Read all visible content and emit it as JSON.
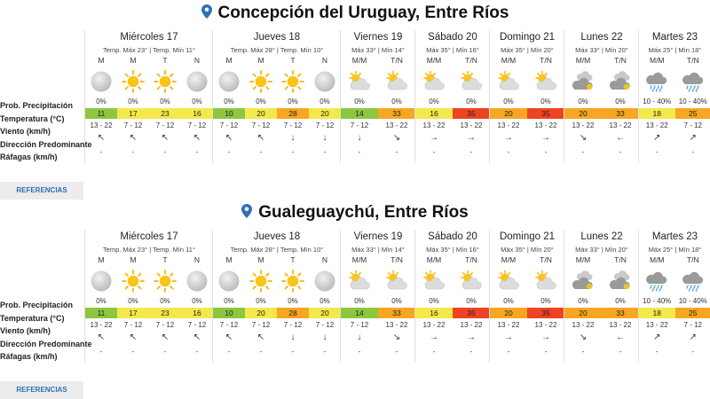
{
  "colors": {
    "accent": "#2f6fb3",
    "green": "#8dc63f",
    "yellow": "#f5e84a",
    "orange": "#f7a623",
    "red": "#ee4423",
    "text": "#222222"
  },
  "labels": {
    "prob": "Prob. Precipitación",
    "temp": "Temperatura (°C)",
    "wind": "Viento (km/h)",
    "dir": "Dirección Predominante",
    "gust": "Ráfagas (km/h)"
  },
  "references_label": "REFERENCIAS",
  "blocks": [
    {
      "title": "Concepción del Uruguay, Entre Ríos",
      "days": [
        {
          "name": "Miércoles 17",
          "temps": "Temp. Máx 23° | Temp. Mín 11°",
          "cols": [
            {
              "p": "M",
              "icon": "full-moon",
              "pp": "0%",
              "t": "11",
              "tc": "green",
              "w": "13 - 22",
              "d": "↖",
              "g": "-"
            },
            {
              "p": "M",
              "icon": "sun",
              "pp": "0%",
              "t": "17",
              "tc": "yellow",
              "w": "7 - 12",
              "d": "↖",
              "g": "-"
            },
            {
              "p": "T",
              "icon": "sun",
              "pp": "0%",
              "t": "23",
              "tc": "yellow",
              "w": "7 - 12",
              "d": "↖",
              "g": "-"
            },
            {
              "p": "N",
              "icon": "full-moon",
              "pp": "0%",
              "t": "16",
              "tc": "yellow",
              "w": "7 - 12",
              "d": "↖",
              "g": "-"
            }
          ]
        },
        {
          "name": "Jueves 18",
          "temps": "Temp. Máx 28° | Temp. Mín 10°",
          "cols": [
            {
              "p": "M",
              "icon": "full-moon",
              "pp": "0%",
              "t": "10",
              "tc": "green",
              "w": "7 - 12",
              "d": "↖",
              "g": "-"
            },
            {
              "p": "M",
              "icon": "sun",
              "pp": "0%",
              "t": "20",
              "tc": "yellow",
              "w": "7 - 12",
              "d": "↖",
              "g": "-"
            },
            {
              "p": "T",
              "icon": "sun",
              "pp": "0%",
              "t": "28",
              "tc": "orange",
              "w": "7 - 12",
              "d": "↓",
              "g": "-"
            },
            {
              "p": "N",
              "icon": "full-moon",
              "pp": "0%",
              "t": "20",
              "tc": "yellow",
              "w": "7 - 12",
              "d": "↓",
              "g": "-"
            }
          ]
        },
        {
          "name": "Viernes 19",
          "temps": "Máx 33° | Mín 14°",
          "cols": [
            {
              "p": "M/M",
              "icon": "partly-cloudy",
              "pp": "0%",
              "t": "14",
              "tc": "green",
              "w": "7 - 12",
              "d": "↓",
              "g": "-"
            },
            {
              "p": "T/N",
              "icon": "partly-cloudy",
              "pp": "0%",
              "t": "33",
              "tc": "orange",
              "w": "13 - 22",
              "d": "↘",
              "g": "-"
            }
          ]
        },
        {
          "name": "Sábado 20",
          "temps": "Máx 35° | Mín 16°",
          "cols": [
            {
              "p": "M/M",
              "icon": "partly-cloudy",
              "pp": "0%",
              "t": "16",
              "tc": "yellow",
              "w": "13 - 22",
              "d": "→",
              "g": "-"
            },
            {
              "p": "T/N",
              "icon": "partly-cloudy",
              "pp": "0%",
              "t": "35",
              "tc": "red",
              "w": "13 - 22",
              "d": "→",
              "g": "-"
            }
          ]
        },
        {
          "name": "Domingo 21",
          "temps": "Máx 35° | Mín 20°",
          "cols": [
            {
              "p": "M/M",
              "icon": "partly-cloudy",
              "pp": "0%",
              "t": "20",
              "tc": "orange",
              "w": "13 - 22",
              "d": "→",
              "g": "-"
            },
            {
              "p": "T/N",
              "icon": "partly-cloudy",
              "pp": "0%",
              "t": "35",
              "tc": "red",
              "w": "13 - 22",
              "d": "→",
              "g": "-"
            }
          ]
        },
        {
          "name": "Lunes 22",
          "temps": "Máx 33° | Mín 20°",
          "cols": [
            {
              "p": "M/M",
              "icon": "cloudy",
              "pp": "0%",
              "t": "20",
              "tc": "orange",
              "w": "13 - 22",
              "d": "↘",
              "g": "-"
            },
            {
              "p": "T/N",
              "icon": "cloudy",
              "pp": "0%",
              "t": "33",
              "tc": "orange",
              "w": "13 - 22",
              "d": "←",
              "g": "-"
            }
          ]
        },
        {
          "name": "Martes 23",
          "temps": "Máx 25° | Mín 18°",
          "cols": [
            {
              "p": "M/M",
              "icon": "rain",
              "pp": "10 - 40%",
              "t": "18",
              "tc": "yellow",
              "w": "13 - 22",
              "d": "↗",
              "g": "-"
            },
            {
              "p": "T/N",
              "icon": "rain",
              "pp": "10 - 40%",
              "t": "25",
              "tc": "orange",
              "w": "7 - 12",
              "d": "↗",
              "g": "-"
            }
          ]
        }
      ]
    },
    {
      "title": "Gualeguaychú, Entre Ríos",
      "days": [
        {
          "name": "Miércoles 17",
          "temps": "Temp. Máx 23° | Temp. Mín 11°",
          "cols": [
            {
              "p": "M",
              "icon": "full-moon",
              "pp": "0%",
              "t": "11",
              "tc": "green",
              "w": "13 - 22",
              "d": "↖",
              "g": "-"
            },
            {
              "p": "M",
              "icon": "sun",
              "pp": "0%",
              "t": "17",
              "tc": "yellow",
              "w": "7 - 12",
              "d": "↖",
              "g": "-"
            },
            {
              "p": "T",
              "icon": "sun",
              "pp": "0%",
              "t": "23",
              "tc": "yellow",
              "w": "7 - 12",
              "d": "↖",
              "g": "-"
            },
            {
              "p": "N",
              "icon": "full-moon",
              "pp": "0%",
              "t": "16",
              "tc": "yellow",
              "w": "7 - 12",
              "d": "↖",
              "g": "-"
            }
          ]
        },
        {
          "name": "Jueves 18",
          "temps": "Temp. Máx 28° | Temp. Mín 10°",
          "cols": [
            {
              "p": "M",
              "icon": "full-moon",
              "pp": "0%",
              "t": "10",
              "tc": "green",
              "w": "7 - 12",
              "d": "↖",
              "g": "-"
            },
            {
              "p": "M",
              "icon": "sun",
              "pp": "0%",
              "t": "20",
              "tc": "yellow",
              "w": "7 - 12",
              "d": "↖",
              "g": "-"
            },
            {
              "p": "T",
              "icon": "sun",
              "pp": "0%",
              "t": "28",
              "tc": "orange",
              "w": "7 - 12",
              "d": "↓",
              "g": "-"
            },
            {
              "p": "N",
              "icon": "full-moon",
              "pp": "0%",
              "t": "20",
              "tc": "yellow",
              "w": "7 - 12",
              "d": "↓",
              "g": "-"
            }
          ]
        },
        {
          "name": "Viernes 19",
          "temps": "Máx 33° | Mín 14°",
          "cols": [
            {
              "p": "M/M",
              "icon": "partly-cloudy",
              "pp": "0%",
              "t": "14",
              "tc": "green",
              "w": "7 - 12",
              "d": "↓",
              "g": "-"
            },
            {
              "p": "T/N",
              "icon": "partly-cloudy",
              "pp": "0%",
              "t": "33",
              "tc": "orange",
              "w": "13 - 22",
              "d": "↘",
              "g": "-"
            }
          ]
        },
        {
          "name": "Sábado 20",
          "temps": "Máx 35° | Mín 16°",
          "cols": [
            {
              "p": "M/M",
              "icon": "partly-cloudy",
              "pp": "0%",
              "t": "16",
              "tc": "yellow",
              "w": "13 - 22",
              "d": "→",
              "g": "-"
            },
            {
              "p": "T/N",
              "icon": "partly-cloudy",
              "pp": "0%",
              "t": "35",
              "tc": "red",
              "w": "13 - 22",
              "d": "→",
              "g": "-"
            }
          ]
        },
        {
          "name": "Domingo 21",
          "temps": "Máx 35° | Mín 20°",
          "cols": [
            {
              "p": "M/M",
              "icon": "partly-cloudy",
              "pp": "0%",
              "t": "20",
              "tc": "orange",
              "w": "13 - 22",
              "d": "→",
              "g": "-"
            },
            {
              "p": "T/N",
              "icon": "partly-cloudy",
              "pp": "0%",
              "t": "35",
              "tc": "red",
              "w": "13 - 22",
              "d": "→",
              "g": "-"
            }
          ]
        },
        {
          "name": "Lunes 22",
          "temps": "Máx 33° | Mín 20°",
          "cols": [
            {
              "p": "M/M",
              "icon": "cloudy",
              "pp": "0%",
              "t": "20",
              "tc": "orange",
              "w": "13 - 22",
              "d": "↘",
              "g": "-"
            },
            {
              "p": "T/N",
              "icon": "cloudy",
              "pp": "0%",
              "t": "33",
              "tc": "orange",
              "w": "13 - 22",
              "d": "←",
              "g": "-"
            }
          ]
        },
        {
          "name": "Martes 23",
          "temps": "Máx 25° | Mín 18°",
          "cols": [
            {
              "p": "M/M",
              "icon": "rain",
              "pp": "10 - 40%",
              "t": "18",
              "tc": "yellow",
              "w": "13 - 22",
              "d": "↗",
              "g": "-"
            },
            {
              "p": "T/N",
              "icon": "rain",
              "pp": "10 - 40%",
              "t": "25",
              "tc": "orange",
              "w": "7 - 12",
              "d": "↗",
              "g": "-"
            }
          ]
        }
      ]
    }
  ]
}
